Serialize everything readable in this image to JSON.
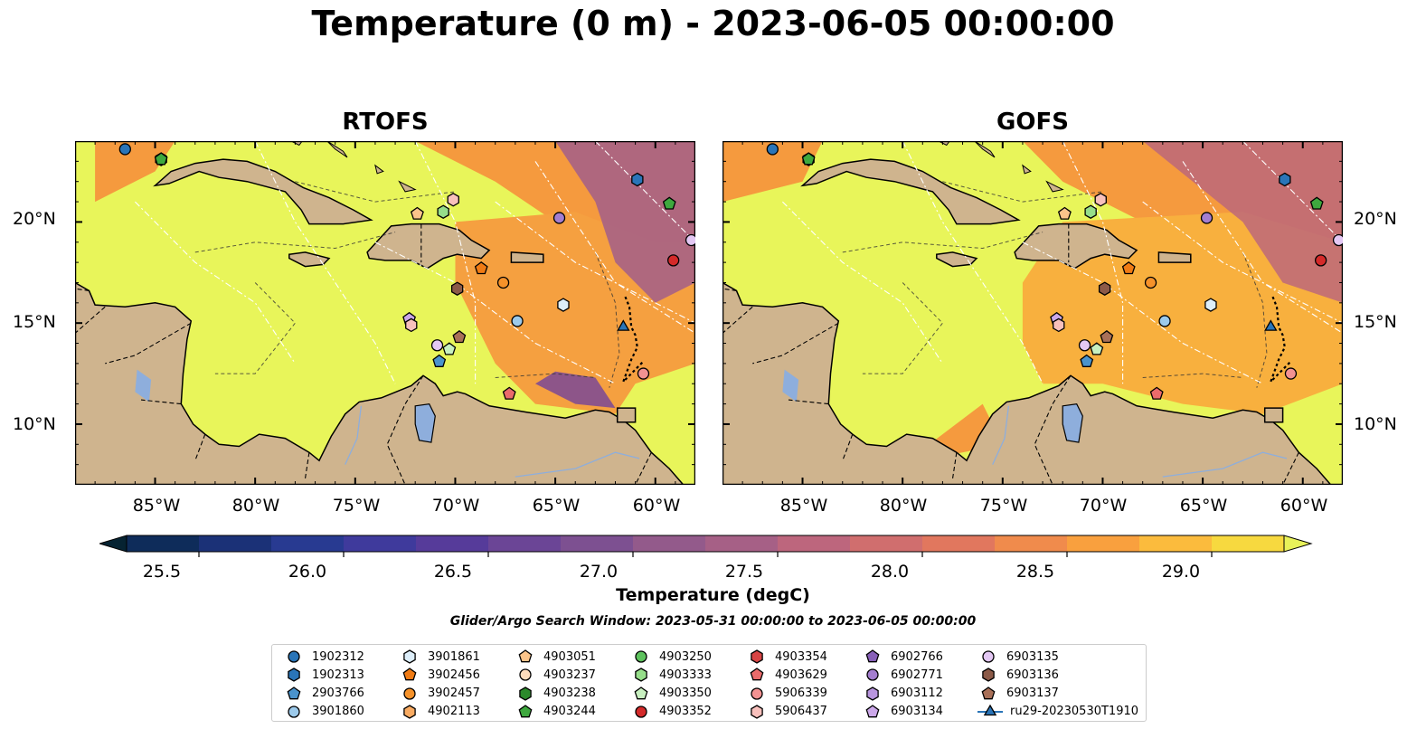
{
  "title": "Temperature (0 m) - 2023-06-05 00:00:00",
  "panels": [
    {
      "name": "RTOFS"
    },
    {
      "name": "GOFS"
    }
  ],
  "lat_labels": [
    "20°N",
    "15°N",
    "10°N"
  ],
  "lon_labels": [
    "85°W",
    "80°W",
    "75°W",
    "70°W",
    "65°W",
    "60°W"
  ],
  "lon_values": [
    -85,
    -80,
    -75,
    -70,
    -65,
    -60
  ],
  "lat_values": [
    20,
    15,
    10
  ],
  "extent": {
    "lon": [
      -89,
      -58
    ],
    "lat": [
      7,
      24
    ]
  },
  "colorbar": {
    "label": "Temperature (degC)",
    "ticks": [
      "25.5",
      "26.0",
      "26.5",
      "27.0",
      "27.5",
      "28.0",
      "28.5",
      "29.0"
    ],
    "range": [
      25.25,
      29.25
    ],
    "colors": [
      "#062332",
      "#0e2c5a",
      "#1b3177",
      "#283a91",
      "#3f3a9c",
      "#563b9a",
      "#6b4596",
      "#7d5091",
      "#935a8b",
      "#a66086",
      "#bd667d",
      "#d06e6e",
      "#e1775e",
      "#f08b4c",
      "#f9a03e",
      "#fbbb3d",
      "#f7d93f",
      "#e8f259"
    ]
  },
  "search_window": "Glider/Argo Search Window: 2023-05-31 00:00:00 to 2023-06-05 00:00:00",
  "colors": {
    "land": "#cfb48e",
    "lake": "#8eaedc",
    "warm": "#e8f55a"
  },
  "legend": [
    {
      "label": "1902312",
      "marker": "circle",
      "color": "#2a75b8"
    },
    {
      "label": "1902313",
      "marker": "hexagon",
      "color": "#2a75b8"
    },
    {
      "label": "2903766",
      "marker": "pentagon",
      "color": "#4a93cc"
    },
    {
      "label": "3901860",
      "marker": "circle",
      "color": "#9ccaeb"
    },
    {
      "label": "3901861",
      "marker": "hexagon",
      "color": "#ddeefa"
    },
    {
      "label": "3902456",
      "marker": "pentagon",
      "color": "#f07b14"
    },
    {
      "label": "3902457",
      "marker": "circle",
      "color": "#f6922a"
    },
    {
      "label": "4902113",
      "marker": "hexagon",
      "color": "#f9ab62"
    },
    {
      "label": "4903051",
      "marker": "pentagon",
      "color": "#fbc48a"
    },
    {
      "label": "4903237",
      "marker": "circle",
      "color": "#fddcbc"
    },
    {
      "label": "4903238",
      "marker": "hexagon",
      "color": "#2b8a2b"
    },
    {
      "label": "4903244",
      "marker": "pentagon",
      "color": "#3ea83e"
    },
    {
      "label": "4903250",
      "marker": "circle",
      "color": "#5dc25d"
    },
    {
      "label": "4903333",
      "marker": "hexagon",
      "color": "#96de8a"
    },
    {
      "label": "4903350",
      "marker": "pentagon",
      "color": "#c8f0c0"
    },
    {
      "label": "4903352",
      "marker": "circle",
      "color": "#d42a2a"
    },
    {
      "label": "4903354",
      "marker": "hexagon",
      "color": "#d84545"
    },
    {
      "label": "4903629",
      "marker": "pentagon",
      "color": "#ea6b6b"
    },
    {
      "label": "5906339",
      "marker": "circle",
      "color": "#f29292"
    },
    {
      "label": "5906437",
      "marker": "hexagon",
      "color": "#f8c0bc"
    },
    {
      "label": "6902766",
      "marker": "pentagon",
      "color": "#8860b8"
    },
    {
      "label": "6902771",
      "marker": "circle",
      "color": "#a47ed0"
    },
    {
      "label": "6903112",
      "marker": "hexagon",
      "color": "#b895de"
    },
    {
      "label": "6903134",
      "marker": "pentagon",
      "color": "#cca8ea"
    },
    {
      "label": "6903135",
      "marker": "circle",
      "color": "#e4c8f4"
    },
    {
      "label": "6903136",
      "marker": "hexagon",
      "color": "#8c5a48"
    },
    {
      "label": "6903137",
      "marker": "pentagon",
      "color": "#a97058"
    },
    {
      "label": "ru29-20230530T1910",
      "marker": "triangle-line",
      "color": "#2a75b8"
    }
  ],
  "markers": [
    {
      "id": "1902312",
      "lon": -86.5,
      "lat": 23.6
    },
    {
      "id": "4903238",
      "lon": -84.7,
      "lat": 23.1
    },
    {
      "id": "4903244",
      "lon": -84.7,
      "lat": 23.1
    },
    {
      "id": "4903051",
      "lon": -71.9,
      "lat": 20.4
    },
    {
      "id": "4903333",
      "lon": -70.6,
      "lat": 20.5
    },
    {
      "id": "5906437",
      "lon": -70.1,
      "lat": 21.1
    },
    {
      "id": "6902771",
      "lon": -64.8,
      "lat": 20.2
    },
    {
      "id": "1902313",
      "lon": -60.9,
      "lat": 22.1
    },
    {
      "id": "4903244",
      "lon": -59.3,
      "lat": 20.9
    },
    {
      "id": "6903135",
      "lon": -58.2,
      "lat": 19.1
    },
    {
      "id": "4903352",
      "lon": -59.1,
      "lat": 18.1
    },
    {
      "id": "3902456",
      "lon": -68.7,
      "lat": 17.7
    },
    {
      "id": "3902457",
      "lon": -67.6,
      "lat": 17.0
    },
    {
      "id": "6903136",
      "lon": -69.9,
      "lat": 16.7
    },
    {
      "id": "3901861",
      "lon": -64.6,
      "lat": 15.9
    },
    {
      "id": "3901860",
      "lon": -66.9,
      "lat": 15.1
    },
    {
      "id": "6903134",
      "lon": -72.3,
      "lat": 15.2
    },
    {
      "id": "5906437",
      "lon": -72.2,
      "lat": 14.9
    },
    {
      "id": "6903137",
      "lon": -69.8,
      "lat": 14.3
    },
    {
      "id": "6903135",
      "lon": -70.9,
      "lat": 13.9
    },
    {
      "id": "4903350",
      "lon": -70.3,
      "lat": 13.7
    },
    {
      "id": "2903766",
      "lon": -70.8,
      "lat": 13.1
    },
    {
      "id": "ru29-20230530T1910",
      "lon": -61.6,
      "lat": 14.8
    },
    {
      "id": "5906339",
      "lon": -60.6,
      "lat": 12.5
    },
    {
      "id": "4903629",
      "lon": -67.3,
      "lat": 11.5
    }
  ]
}
